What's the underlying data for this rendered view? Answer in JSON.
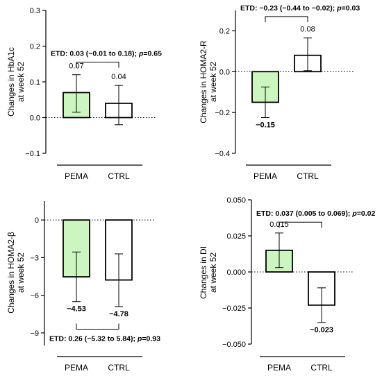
{
  "chart_data": [
    {
      "type": "bar",
      "ylabel": "Changes in HbA1c at week 52",
      "ylabel_lines": [
        "Changes in HbA1c",
        "at week 52"
      ],
      "categories": [
        "PEMA",
        "CTRL"
      ],
      "values": [
        0.07,
        0.04
      ],
      "value_labels": [
        "0.07",
        "0.04"
      ],
      "error_low": [
        0.015,
        -0.02
      ],
      "error_high": [
        0.12,
        0.09
      ],
      "ylim": [
        -0.1,
        0.3
      ],
      "yticks": [
        -0.1,
        0.0,
        0.1,
        0.2,
        0.3
      ],
      "ytick_labels": [
        "−0.1",
        "0.0",
        "0.1",
        "0.2",
        "0.3"
      ],
      "annotation": {
        "parts": [
          "ETD: 0.03 (−0.01 to 0.18); ",
          "p",
          "=0.65"
        ],
        "position": "above",
        "value": 0.155
      },
      "bar_colors": [
        "#ccf5bf",
        "#ffffff"
      ]
    },
    {
      "type": "bar",
      "ylabel": "Changes in HOMA2-R at week 52",
      "ylabel_lines": [
        "Changes in HOMA2-R",
        "at week 52"
      ],
      "categories": [
        "PEMA",
        "CTRL"
      ],
      "values": [
        -0.15,
        0.08
      ],
      "value_labels": [
        "−0.15",
        "0.08"
      ],
      "error_low": [
        -0.225,
        0.005
      ],
      "error_high": [
        -0.075,
        0.165
      ],
      "ylim": [
        -0.4,
        0.3
      ],
      "yticks": [
        -0.4,
        -0.2,
        0.0,
        0.2
      ],
      "ytick_labels": [
        "−0.4",
        "−0.2",
        "0.0",
        "0.2"
      ],
      "annotation": {
        "parts": [
          "ETD: −0.23 (−0.44 to −0.02); ",
          "p",
          "=0.03"
        ],
        "position": "above",
        "value": 0.27
      },
      "bar_colors": [
        "#ccf5bf",
        "#ffffff"
      ]
    },
    {
      "type": "bar",
      "ylabel": "Changes in HOMA2-β at week 52",
      "ylabel_lines": [
        "Changes in HOMA2-β",
        "at week 52"
      ],
      "categories": [
        "PEMA",
        "CTRL"
      ],
      "values": [
        -4.53,
        -4.78
      ],
      "value_labels": [
        "−4.53",
        "−4.78"
      ],
      "error_low": [
        -6.5,
        -6.9
      ],
      "error_high": [
        -2.55,
        -2.7
      ],
      "ylim": [
        -10,
        1.5
      ],
      "yticks": [
        -9,
        -6,
        -3,
        0
      ],
      "ytick_labels": [
        "−9",
        "−6",
        "−3",
        "0"
      ],
      "annotation": {
        "parts": [
          "ETD: 0.26 (−5.32 to 5.84); ",
          "p",
          "=0.93"
        ],
        "position": "below",
        "value": -8.7
      },
      "bar_colors": [
        "#ccf5bf",
        "#ffffff"
      ]
    },
    {
      "type": "bar",
      "ylabel": "Changes in DI at week 52",
      "ylabel_lines": [
        "Changes in DI",
        "at week 52"
      ],
      "categories": [
        "PEMA",
        "CTRL"
      ],
      "values": [
        0.015,
        -0.023
      ],
      "value_labels": [
        "0.015",
        "−0.023"
      ],
      "error_low": [
        0.003,
        -0.035
      ],
      "error_high": [
        0.027,
        -0.011
      ],
      "ylim": [
        -0.05,
        0.05
      ],
      "yticks": [
        -0.05,
        -0.025,
        0.0,
        0.025,
        0.05
      ],
      "ytick_labels": [
        "−0.050",
        "−0.025",
        "0.000",
        "0.025",
        "0.050"
      ],
      "annotation": {
        "parts": [
          "ETD: 0.037 (0.005 to 0.069); ",
          "p",
          "=0.02"
        ],
        "position": "above",
        "value": 0.0345
      },
      "bar_colors": [
        "#ccf5bf",
        "#ffffff"
      ]
    }
  ]
}
